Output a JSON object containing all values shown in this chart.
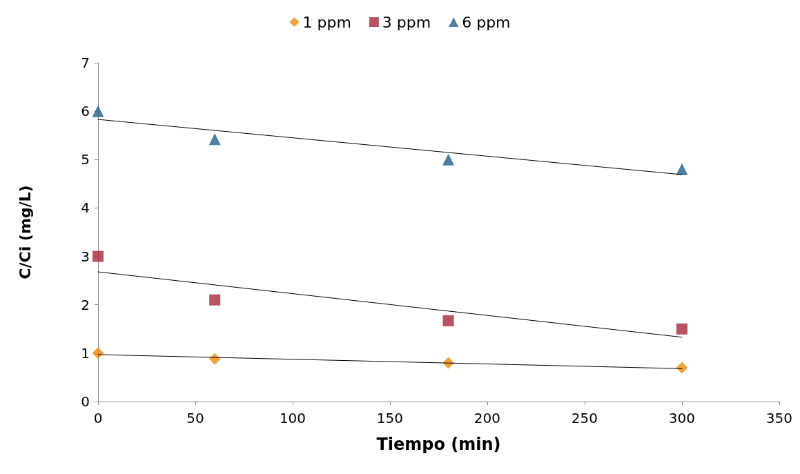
{
  "chart_data": {
    "type": "scatter",
    "xlabel": "Tiempo (min)",
    "ylabel": "C/Ci (mg/L)",
    "xlim": [
      0,
      350
    ],
    "xticks": [
      0,
      50,
      100,
      150,
      200,
      250,
      300,
      350
    ],
    "ylim": [
      0,
      7
    ],
    "yticks": [
      0,
      1,
      2,
      3,
      4,
      5,
      6,
      7
    ],
    "grid": false,
    "legend": "top",
    "series": [
      {
        "name": "1 ppm",
        "color": "#f08a0c",
        "marker": "diamond",
        "x": [
          0,
          60,
          180,
          300
        ],
        "values": [
          1.0,
          0.88,
          0.8,
          0.7
        ]
      },
      {
        "name": "3 ppm",
        "color": "#a8283a",
        "marker": "square",
        "x": [
          0,
          60,
          180,
          300
        ],
        "values": [
          3.0,
          2.1,
          1.67,
          1.5
        ]
      },
      {
        "name": "6 ppm",
        "color": "#1f5f88",
        "marker": "triangle",
        "x": [
          0,
          60,
          180,
          300
        ],
        "values": [
          6.0,
          5.42,
          5.0,
          4.8
        ]
      },
      {
        "type": "line",
        "color": "#000000",
        "marker": "none",
        "x": [
          0,
          300
        ],
        "values": [
          0.97,
          0.68
        ]
      },
      {
        "type": "line",
        "color": "#000000",
        "marker": "none",
        "x": [
          0,
          300
        ],
        "values": [
          2.68,
          1.33
        ]
      },
      {
        "type": "line",
        "color": "#000000",
        "marker": "none",
        "x": [
          0,
          300
        ],
        "values": [
          5.83,
          4.69
        ]
      }
    ]
  }
}
